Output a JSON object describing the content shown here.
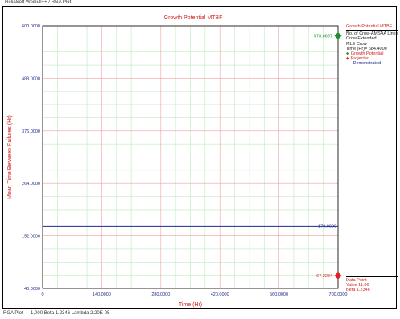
{
  "window": {
    "top_caption": "ReliaSoft Weibull++ / RGA Plot",
    "bottom_caption": "RGA Plot — 1,000  Beta 1.2346  Lambda 2.20E-05"
  },
  "chart_data": {
    "type": "line",
    "title": "Growth Potential MTBF",
    "xlabel": "Time (Hr)",
    "ylabel": "Mean Time Between Failures (Hr)",
    "xlim": [
      0,
      700
    ],
    "ylim": [
      40,
      600
    ],
    "x_ticks": [
      "0",
      "140.0000",
      "280.0000",
      "420.0000",
      "560.0000",
      "700.0000"
    ],
    "y_ticks": [
      "40.0000",
      "152.0000",
      "264.0000",
      "376.0000",
      "488.0000",
      "600.0000"
    ],
    "grid": true,
    "series": [
      {
        "name": "",
        "x": [
          0,
          700
        ],
        "y": [
          173,
          173
        ],
        "color": "#1e2a8c"
      }
    ],
    "markers": [
      {
        "name": "",
        "x": 700,
        "y": 578.6667,
        "label": "578.6667",
        "color": "#1f8f2f",
        "shape": "diamond"
      },
      {
        "name": "",
        "x": 700,
        "y": 67.2284,
        "label": "67.2284",
        "color": "#e02020",
        "shape": "diamond"
      }
    ],
    "line_label": {
      "x": 700,
      "y": 173,
      "label": "173.0000"
    },
    "legend_position": "right"
  },
  "legend": {
    "header": "Growth Potential MTBF",
    "lines": [
      "No. of Crow-AMSAA Lines",
      "Crow Extended",
      "MLE Crow",
      "Time (Hr)= 584.4000"
    ],
    "items": [
      {
        "label": "Growth Potential",
        "color": "#1f8f2f",
        "icon": "diamond-icon"
      },
      {
        "label": "Projected",
        "color": "#e02020",
        "icon": "diamond-icon"
      },
      {
        "label": "Demonstrated",
        "color": "#1e2a8c",
        "icon": "line-icon"
      }
    ],
    "footer_header": "Data Point",
    "footer_lines": [
      "Value 11.06",
      "Beta 1.2346"
    ]
  },
  "colors": {
    "major_grid": "#f2a0a0",
    "minor_grid": "#bfeabf",
    "axis": "#1e2a8c",
    "title": "#d02020"
  }
}
